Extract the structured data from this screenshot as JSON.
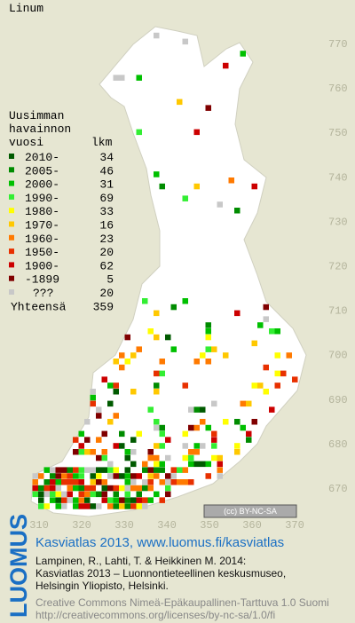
{
  "title": "Linum",
  "legend": {
    "header": [
      "Uusimman",
      "havainnon",
      "vuosi"
    ],
    "count_header": "lkm",
    "rows": [
      {
        "label": "2010-",
        "count": 34,
        "color": "#005a00"
      },
      {
        "label": "2005-",
        "count": 46,
        "color": "#008c00"
      },
      {
        "label": "2000-",
        "count": 31,
        "color": "#00c000"
      },
      {
        "label": "1990-",
        "count": 69,
        "color": "#33ee33"
      },
      {
        "label": "1980-",
        "count": 33,
        "color": "#ffff00"
      },
      {
        "label": "1970-",
        "count": 16,
        "color": "#ffc800"
      },
      {
        "label": "1960-",
        "count": 23,
        "color": "#ff7a00"
      },
      {
        "label": "1950-",
        "count": 20,
        "color": "#e83000"
      },
      {
        "label": "1900-",
        "count": 62,
        "color": "#cc0000"
      },
      {
        "label": "-1899",
        "count": 5,
        "color": "#800000"
      },
      {
        "label": "???",
        "count": 20,
        "color": "#c8c8c8"
      }
    ],
    "total": {
      "label": "Yhteensä",
      "count": 359
    }
  },
  "map": {
    "y_labels": [
      "770",
      "760",
      "750",
      "740",
      "730",
      "720",
      "710",
      "700",
      "690",
      "680",
      "670"
    ],
    "x_labels": [
      "310",
      "320",
      "330",
      "340",
      "350",
      "360",
      "370"
    ],
    "license": "(cc) BY-NC-SA"
  },
  "footer": {
    "logo": "LUOMUS",
    "heading": "Kasviatlas 2013, www.luomus.fi/kasviatlas",
    "citation": [
      "Lampinen, R., Lahti, T. & Heikkinen M. 2014:",
      "Kasviatlas 2013 – Luonnontieteellinen keskusmuseo,",
      "Helsingin Yliopisto, Helsinki."
    ],
    "license_text": [
      "Creative Commons Nimeä-Epäkaupallinen-Tarttuva 1.0 Suomi",
      "http://creativecommons.org/licenses/by-nc-sa/1.0/fi"
    ]
  }
}
